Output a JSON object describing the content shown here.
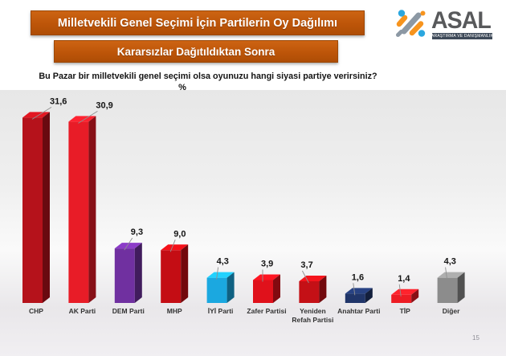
{
  "slide": {
    "title_banner": "Milletvekili Genel Seçimi İçin Partilerin Oy Dağılımı",
    "subtitle_banner": "Kararsızlar Dağıtıldıktan Sonra",
    "question": "Bu Pazar bir milletvekili genel seçimi olsa oyunuzu hangi siyasi partiye verirsiniz?",
    "page_number": "15",
    "banner_color": "#BD5509"
  },
  "logo": {
    "brand": "ASAL",
    "tagline": "ARAŞTIRMA VE DANIŞMANLIK",
    "icon": "percent-dots-icon",
    "colors": {
      "blue": "#2BA7DF",
      "orange": "#F7941E",
      "gray": "#8C98A4",
      "brand_text": "#58595B",
      "tagline_bg": "#3E4A59"
    }
  },
  "chart_data": {
    "type": "bar",
    "style": "3d-column",
    "title": "Milletvekili Genel Seçimi İçin Partilerin Oy Dağılımı — Kararsızlar Dağıtıldıktan Sonra",
    "unit_label": "%",
    "categories": [
      "CHP",
      "AK Parti",
      "DEM Parti",
      "MHP",
      "İYİ Parti",
      "Zafer Partisi",
      "Yeniden Refah Partisi",
      "Anahtar Parti",
      "TİP",
      "Diğer"
    ],
    "values": [
      31.6,
      30.9,
      9.3,
      9.0,
      4.3,
      3.9,
      3.7,
      1.6,
      1.4,
      4.3
    ],
    "value_labels": [
      "31,6",
      "30,9",
      "9,3",
      "9,0",
      "4,3",
      "3,9",
      "3,7",
      "1,6",
      "1,4",
      "4,3"
    ],
    "bar_colors": [
      "#B5121B",
      "#E81C27",
      "#7030A0",
      "#C40D14",
      "#1BA8E0",
      "#E0111B",
      "#C41016",
      "#203569",
      "#ED1C24",
      "#8C8C8C"
    ],
    "ylim": [
      0,
      35
    ],
    "grid": false,
    "legend": false
  }
}
